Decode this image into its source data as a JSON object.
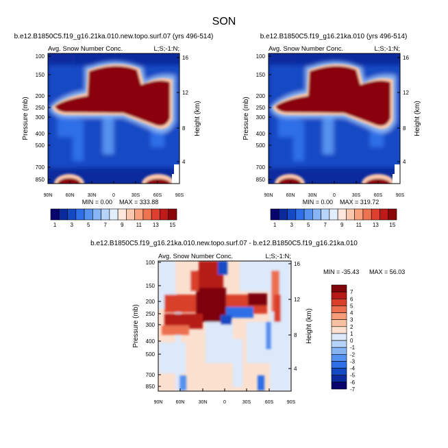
{
  "suptitle": "SON",
  "colors": {
    "seq": [
      "#08046e",
      "#0a2a9e",
      "#1449c4",
      "#2e6ee6",
      "#5592f0",
      "#86b4f5",
      "#b6d3f9",
      "#e2eefc",
      "#fde7dc",
      "#fbc8ad",
      "#f7a07c",
      "#ee7351",
      "#de3f2e",
      "#be1a18",
      "#8b0608"
    ],
    "diff": [
      "#08046e",
      "#0a2a9e",
      "#1449c4",
      "#2e6ee6",
      "#5592f0",
      "#86b4f5",
      "#b6d3f9",
      "#dce9fb",
      "#fbe0d0",
      "#f9c0a2",
      "#f59c78",
      "#ec7050",
      "#d9402c",
      "#b61a17",
      "#7f0508"
    ],
    "bg_seq": "#0a2a9e",
    "bg_diff": "#fbe0d0"
  },
  "chart_data": [
    {
      "type": "heatmap",
      "title": "b.e12.B1850C5.f19_g16.21ka.010.new.topo.surf.07 (yrs 496-514)",
      "left_label": "Avg. Snow Number Conc.",
      "right_label": "L;S;-1:N;",
      "xlabel": "",
      "ylabel": "Pressure (mb)",
      "ylabel_right": "Height (km)",
      "x_ticks": [
        "90N",
        "60N",
        "30N",
        "0",
        "30S",
        "60S",
        "90S"
      ],
      "y_ticks": [
        "100",
        "150",
        "200",
        "250",
        "300",
        "400",
        "500",
        "700",
        "850"
      ],
      "y_ticks_right": [
        "16",
        "12",
        "8",
        "4"
      ],
      "min_label": "MIN =   0.00",
      "max_label": "MAX = 333.88",
      "colorbar_levels": [
        1,
        2,
        3,
        4,
        5,
        6,
        7,
        8,
        9,
        10,
        11,
        12,
        13,
        14,
        15
      ],
      "colorbar_labels": [
        "1",
        "3",
        "5",
        "7",
        "9",
        "11",
        "13",
        "15"
      ],
      "ylim": [
        850,
        100
      ],
      "xlim": [
        "90N",
        "90S"
      ]
    },
    {
      "type": "heatmap",
      "title": "b.e12.B1850C5.f19_g16.21ka.010 (yrs 496-514)",
      "left_label": "Avg. Snow Number Conc.",
      "right_label": "L;S;-1:N;",
      "xlabel": "",
      "ylabel": "Pressure (mb)",
      "ylabel_right": "Height (km)",
      "x_ticks": [
        "90N",
        "60N",
        "30N",
        "0",
        "30S",
        "60S",
        "90S"
      ],
      "y_ticks": [
        "100",
        "150",
        "200",
        "250",
        "300",
        "400",
        "500",
        "700",
        "850"
      ],
      "y_ticks_right": [
        "16",
        "12",
        "8",
        "4"
      ],
      "min_label": "MIN =   0.00",
      "max_label": "MAX = 319.72",
      "colorbar_levels": [
        1,
        2,
        3,
        4,
        5,
        6,
        7,
        8,
        9,
        10,
        11,
        12,
        13,
        14,
        15
      ],
      "colorbar_labels": [
        "1",
        "3",
        "5",
        "7",
        "9",
        "11",
        "13",
        "15"
      ],
      "ylim": [
        850,
        100
      ],
      "xlim": [
        "90N",
        "90S"
      ]
    },
    {
      "type": "heatmap",
      "title": "b.e12.B1850C5.f19_g16.21ka.010.new.topo.surf.07 - b.e12.B1850C5.f19_g16.21ka.010",
      "left_label": "Avg. Snow Number Conc.",
      "right_label": "L;S;-1:N;",
      "xlabel": "",
      "ylabel": "Pressure (mb)",
      "ylabel_right": "Height (km)",
      "x_ticks": [
        "90N",
        "60N",
        "30N",
        "0",
        "30S",
        "60S",
        "90S"
      ],
      "y_ticks": [
        "100",
        "150",
        "200",
        "250",
        "300",
        "400",
        "500",
        "700",
        "850"
      ],
      "y_ticks_right": [
        "16",
        "12",
        "8",
        "4"
      ],
      "min_label": "MIN = -35.43",
      "max_label": "MAX =  56.03",
      "colorbar_levels": [
        -7,
        -6,
        -5,
        -4,
        -3,
        -2,
        -1,
        0,
        1,
        2,
        3,
        4,
        5,
        6,
        7
      ],
      "colorbar_labels": [
        "7",
        "6",
        "5",
        "4",
        "3",
        "2",
        "1",
        "0",
        "-1",
        "-2",
        "-3",
        "-4",
        "-5",
        "-6",
        "-7"
      ],
      "ylim": [
        850,
        100
      ],
      "xlim": [
        "90N",
        "90S"
      ]
    }
  ]
}
